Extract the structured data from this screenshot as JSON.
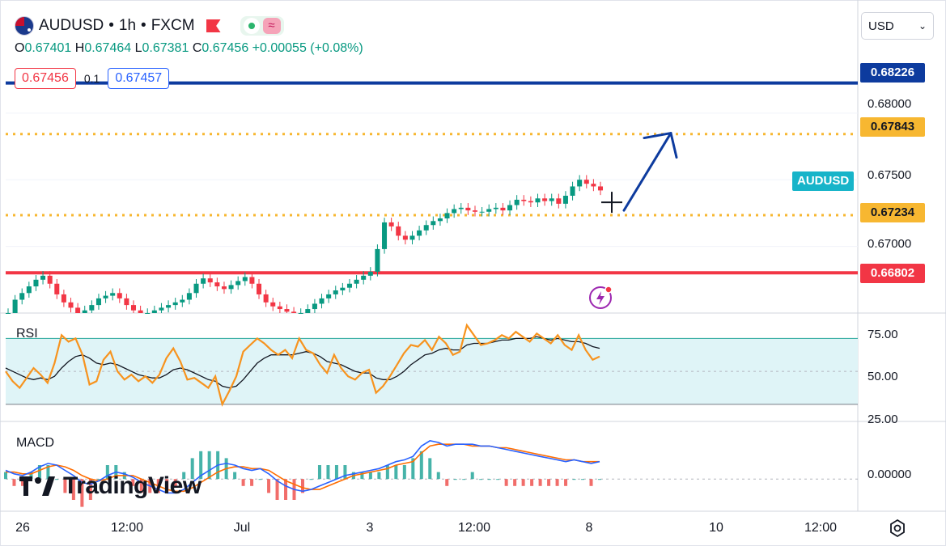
{
  "header": {
    "symbol": "AUDUSD",
    "sep1": "•",
    "interval": "1h",
    "sep2": "•",
    "source": "FXCM"
  },
  "ohlc": {
    "open_label": "O",
    "open": "0.67401",
    "high_label": "H",
    "high": "0.67464",
    "low_label": "L",
    "low": "0.67381",
    "close_label": "C",
    "close": "0.67456",
    "change": "+0.00055 (+0.08%)"
  },
  "quote": {
    "bid": "0.67456",
    "spread": "0.1",
    "ask": "0.67457"
  },
  "currency_select": "USD",
  "symbol_tag": "AUDUSD",
  "logo_text": "TradingView",
  "colors": {
    "up": "#089981",
    "down": "#f23645",
    "resistance": "#0d3b9e",
    "dotted": "#f7b731",
    "support": "#f23645",
    "rsi": "#f7931e",
    "rsi_band": "#dff4f7",
    "macd": "#2962ff",
    "signal": "#ff6d00",
    "accent": "#17b4c9"
  },
  "chart_data": [
    {
      "type": "candlestick",
      "name": "AUDUSD 1h",
      "ylim": [
        0.665,
        0.688
      ],
      "y_ticks": [
        "0.68000",
        "0.67500",
        "0.67000"
      ],
      "x_ticks": [
        "26",
        "12:00",
        "Jul",
        "3",
        "12:00",
        "8",
        "10",
        "12:00"
      ],
      "levels": [
        {
          "label": "0.68226",
          "value": 0.68226,
          "style": "solid",
          "color": "#0d3b9e"
        },
        {
          "label": "0.67843",
          "value": 0.67843,
          "style": "dotted",
          "color": "#f7b731"
        },
        {
          "label": "0.67234",
          "value": 0.67234,
          "style": "dotted",
          "color": "#f7b731"
        },
        {
          "label": "0.66802",
          "value": 0.66802,
          "style": "solid",
          "color": "#f23645"
        }
      ],
      "annotation": {
        "type": "arrow",
        "from_value": 0.6727,
        "to_value": 0.6785
      },
      "close_trace": [
        0.665,
        0.666,
        0.6665,
        0.667,
        0.6675,
        0.6678,
        0.6672,
        0.6664,
        0.6658,
        0.6654,
        0.665,
        0.6652,
        0.6656,
        0.6661,
        0.6663,
        0.6665,
        0.6661,
        0.6656,
        0.6652,
        0.665,
        0.665,
        0.6652,
        0.6654,
        0.6656,
        0.6658,
        0.666,
        0.6665,
        0.6672,
        0.6676,
        0.6673,
        0.667,
        0.6668,
        0.6671,
        0.6674,
        0.6677,
        0.6672,
        0.6664,
        0.6658,
        0.6655,
        0.6653,
        0.6651,
        0.665,
        0.665,
        0.6653,
        0.6657,
        0.6661,
        0.6664,
        0.6667,
        0.6669,
        0.6672,
        0.6675,
        0.6678,
        0.6681,
        0.6698,
        0.6718,
        0.6715,
        0.6708,
        0.6705,
        0.6708,
        0.6712,
        0.6716,
        0.6719,
        0.6721,
        0.6725,
        0.6728,
        0.6729,
        0.6727,
        0.6726,
        0.6726,
        0.6728,
        0.6729,
        0.6727,
        0.6731,
        0.6735,
        0.6734,
        0.6733,
        0.6736,
        0.6734,
        0.6736,
        0.6732,
        0.6738,
        0.6745,
        0.675,
        0.6747,
        0.6745,
        0.6742
      ]
    },
    {
      "type": "line",
      "name": "RSI",
      "y_ticks": [
        "75.00",
        "50.00",
        "25.00"
      ],
      "ylim": [
        25,
        80
      ],
      "band": [
        30,
        70
      ],
      "series": [
        {
          "values": [
            50,
            44,
            40,
            46,
            52,
            48,
            43,
            55,
            72,
            68,
            70,
            60,
            42,
            44,
            57,
            62,
            50,
            45,
            48,
            44,
            47,
            43,
            48,
            58,
            64,
            56,
            45,
            46,
            43,
            40,
            47,
            30,
            38,
            47,
            62,
            66,
            70,
            67,
            63,
            60,
            63,
            58,
            70,
            63,
            61,
            54,
            49,
            60,
            52,
            47,
            45,
            49,
            51,
            37,
            41,
            47,
            54,
            61,
            66,
            65,
            69,
            63,
            71,
            67,
            60,
            62,
            78,
            72,
            66,
            67,
            69,
            72,
            70,
            74,
            71,
            68,
            73,
            70,
            67,
            72,
            66,
            63,
            72,
            63,
            57,
            59
          ]
        },
        {
          "values": [
            52,
            50,
            48,
            46,
            45,
            46,
            45,
            47,
            52,
            56,
            59,
            60,
            58,
            55,
            54,
            55,
            54,
            52,
            50,
            48,
            47,
            46,
            46,
            48,
            51,
            52,
            51,
            49,
            47,
            45,
            44,
            41,
            40,
            41,
            45,
            50,
            55,
            58,
            60,
            60,
            60,
            60,
            61,
            62,
            61,
            59,
            56,
            55,
            54,
            52,
            50,
            49,
            49,
            46,
            45,
            45,
            47,
            50,
            54,
            57,
            60,
            61,
            63,
            64,
            63,
            63,
            66,
            67,
            67,
            67,
            68,
            69,
            69,
            70,
            70,
            70,
            71,
            70,
            69,
            70,
            69,
            68,
            68,
            67,
            65,
            64
          ]
        }
      ]
    },
    {
      "type": "line",
      "name": "MACD",
      "y_ticks": [
        "0.00000"
      ],
      "ylim": [
        -0.0012,
        0.0028
      ],
      "series": [
        {
          "values": [
            0.0005,
            0.0003,
            0.0002,
            0.0004,
            0.0007,
            0.0009,
            0.0008,
            0.0005,
            0.0002,
            -0.0002,
            -0.0003,
            -0.0001,
            0.0002,
            0.0004,
            0.0003,
            0.0001,
            -0.0002,
            -0.0004,
            -0.0006,
            -0.0008,
            -0.0008,
            -0.0006,
            -0.0002,
            0.0002,
            0.0005,
            0.0008,
            0.0009,
            0.0008,
            0.0006,
            0.0005,
            0.0006,
            0.0003,
            -0.0001,
            -0.0004,
            -0.0006,
            -0.0007,
            -0.0006,
            -0.0004,
            -0.0002,
            0.0,
            0.0002,
            0.0003,
            0.0004,
            0.0005,
            0.0006,
            0.0008,
            0.001,
            0.0011,
            0.0013,
            0.0019,
            0.0022,
            0.0021,
            0.0019,
            0.002,
            0.002,
            0.002,
            0.0019,
            0.0019,
            0.0018,
            0.0017,
            0.0016,
            0.0015,
            0.0014,
            0.0013,
            0.0012,
            0.0011,
            0.001,
            0.0011,
            0.001,
            0.0009,
            0.001
          ]
        },
        {
          "values": [
            0.0004,
            0.0004,
            0.0003,
            0.0003,
            0.0005,
            0.0007,
            0.0008,
            0.0007,
            0.0005,
            0.0002,
            0.0,
            -0.0001,
            0.0,
            0.0002,
            0.0002,
            0.0002,
            0.0,
            -0.0002,
            -0.0004,
            -0.0006,
            -0.0007,
            -0.0007,
            -0.0005,
            -0.0002,
            0.0001,
            0.0004,
            0.0006,
            0.0007,
            0.0007,
            0.0006,
            0.0006,
            0.0005,
            0.0002,
            -0.0001,
            -0.0003,
            -0.0005,
            -0.0006,
            -0.0006,
            -0.0004,
            -0.0002,
            0.0,
            0.0002,
            0.0003,
            0.0004,
            0.0005,
            0.0006,
            0.0008,
            0.0009,
            0.001,
            0.0015,
            0.0019,
            0.002,
            0.002,
            0.002,
            0.002,
            0.0019,
            0.0019,
            0.0019,
            0.0018,
            0.0018,
            0.0017,
            0.0016,
            0.0015,
            0.0014,
            0.0013,
            0.0012,
            0.0011,
            0.0011,
            0.001,
            0.001,
            0.001
          ]
        }
      ]
    }
  ]
}
